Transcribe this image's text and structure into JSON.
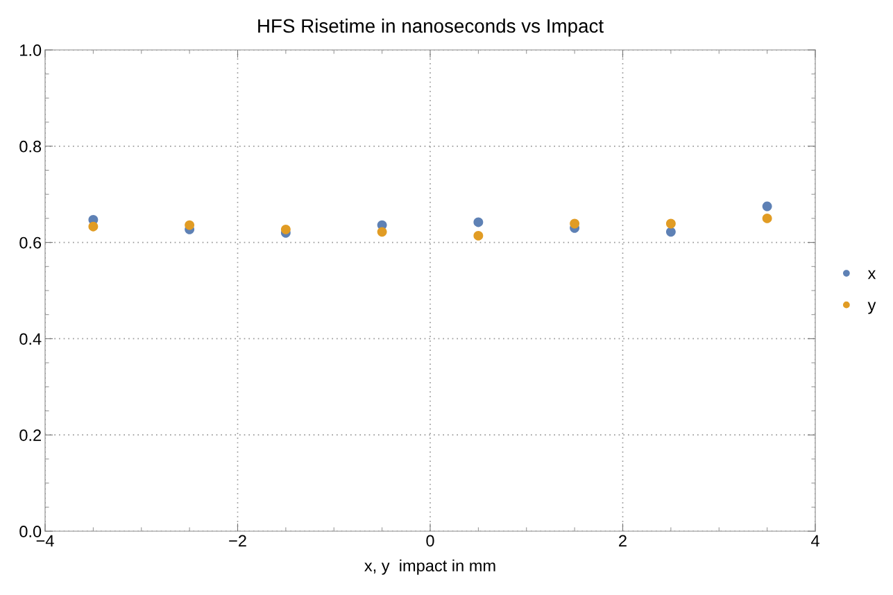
{
  "chart_data": {
    "type": "scatter",
    "title": "HFS Risetime in nanoseconds vs Impact",
    "xlabel": "x, y  impact in mm",
    "x": [
      -3.5,
      -2.5,
      -1.5,
      -0.5,
      0.5,
      1.5,
      2.5,
      3.5
    ],
    "series": [
      {
        "name": "x",
        "color": "#5e81b5",
        "values": [
          0.647,
          0.627,
          0.62,
          0.636,
          0.642,
          0.63,
          0.622,
          0.675
        ]
      },
      {
        "name": "y",
        "color": "#e19c24",
        "values": [
          0.633,
          0.636,
          0.627,
          0.622,
          0.614,
          0.639,
          0.639,
          0.65
        ]
      }
    ],
    "xlim": [
      -4,
      4
    ],
    "xticks": [
      {
        "value": -4,
        "label": "−4"
      },
      {
        "value": -2,
        "label": "−2"
      },
      0,
      2,
      4
    ],
    "ylim": [
      0,
      1
    ],
    "yticks": [
      {
        "value": 0,
        "label": "0.0"
      },
      0.2,
      0.4,
      0.6,
      0.8,
      {
        "value": 1,
        "label": "1.0"
      }
    ],
    "grid": true,
    "legend": "right",
    "marker": "circle"
  }
}
